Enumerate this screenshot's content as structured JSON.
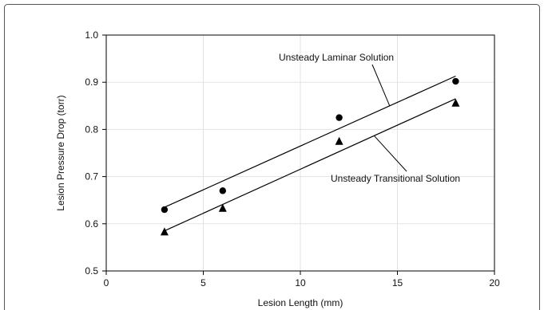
{
  "chart_data": {
    "type": "scatter",
    "title": "",
    "xlabel": "Lesion Length (mm)",
    "ylabel": "Lesion Pressure Drop (torr)",
    "xlim": [
      0,
      20
    ],
    "ylim": [
      0.5,
      1.0
    ],
    "x_ticks": [
      0,
      5,
      10,
      15,
      20
    ],
    "x_tick_labels": [
      "0",
      "5",
      "10",
      "15",
      "20"
    ],
    "y_ticks": [
      0.5,
      0.6,
      0.7,
      0.8,
      0.9,
      1.0
    ],
    "y_tick_labels": [
      "0.5",
      "0.6",
      "0.7",
      "0.8",
      "0.9",
      "1.0"
    ],
    "grid": true,
    "series": [
      {
        "name": "",
        "marker": "circle",
        "color": "#000000",
        "points": [
          [
            3,
            0.63
          ],
          [
            6,
            0.67
          ],
          [
            12,
            0.825
          ],
          [
            18,
            0.902
          ]
        ]
      },
      {
        "name": "",
        "marker": "triangle",
        "color": "#000000",
        "points": [
          [
            3,
            0.583
          ],
          [
            6,
            0.633
          ],
          [
            12,
            0.775
          ],
          [
            18,
            0.856
          ]
        ]
      }
    ],
    "fit_lines": [
      {
        "label": "Unsteady Laminar Solution",
        "from": [
          3,
          0.635
        ],
        "to": [
          18,
          0.913
        ]
      },
      {
        "label": "Unsteady Transitional Solution",
        "from": [
          3,
          0.585
        ],
        "to": [
          18,
          0.865
        ]
      }
    ]
  }
}
